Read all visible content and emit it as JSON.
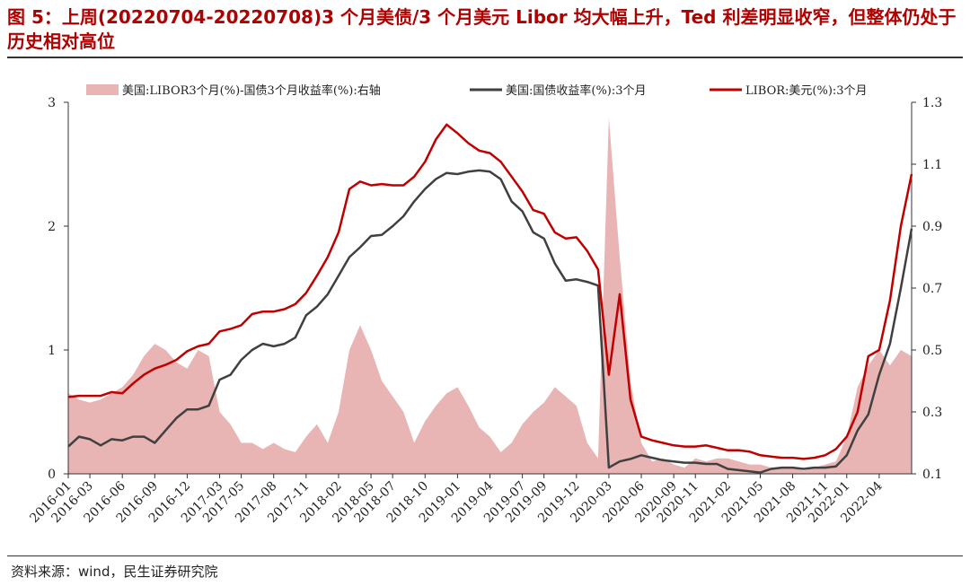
{
  "title": "图 5：上周(20220704-20220708)3 个月美债/3 个月美元 Libor 均大幅上升，Ted 利差明显收窄，但整体仍处于历史相对高位",
  "source": "资料来源：wind，民生证券研究院",
  "colors": {
    "title": "#b00000",
    "libor": "#c00000",
    "treasury": "#404040",
    "spread": "#e8b4b4"
  },
  "chart_data": {
    "type": "line",
    "legend_position": "top",
    "x_start": "2016-01",
    "x_end": "2022-07",
    "ylim_left": [
      0,
      3
    ],
    "yticks_left": [
      "0",
      "1",
      "2",
      "3"
    ],
    "ylim_right": [
      0.1,
      1.3
    ],
    "yticks_right": [
      "0.1",
      "0.3",
      "0.5",
      "0.7",
      "0.9",
      "1.1",
      "1.3"
    ],
    "xticks": [
      "2016-01",
      "2016-03",
      "2016-06",
      "2016-09",
      "2016-12",
      "2017-03",
      "2017-05",
      "2017-08",
      "2017-11",
      "2018-02",
      "2018-05",
      "2018-07",
      "2018-10",
      "2019-01",
      "2019-04",
      "2019-07",
      "2019-09",
      "2019-12",
      "2020-03",
      "2020-06",
      "2020-09",
      "2020-11",
      "2021-02",
      "2021-05",
      "2021-08",
      "2021-11",
      "2022-01",
      "2022-04"
    ],
    "series": [
      {
        "name": "美国:LIBOR3个月(%)-国债3个月收益率(%):右轴",
        "type": "area",
        "axis": "right",
        "points": [
          [
            "2016-01",
            0.36
          ],
          [
            "2016-02",
            0.34
          ],
          [
            "2016-03",
            0.33
          ],
          [
            "2016-04",
            0.34
          ],
          [
            "2016-05",
            0.36
          ],
          [
            "2016-06",
            0.38
          ],
          [
            "2016-07",
            0.42
          ],
          [
            "2016-08",
            0.48
          ],
          [
            "2016-09",
            0.52
          ],
          [
            "2016-10",
            0.5
          ],
          [
            "2016-11",
            0.46
          ],
          [
            "2016-12",
            0.44
          ],
          [
            "2017-01",
            0.5
          ],
          [
            "2017-02",
            0.48
          ],
          [
            "2017-03",
            0.3
          ],
          [
            "2017-04",
            0.26
          ],
          [
            "2017-05",
            0.2
          ],
          [
            "2017-06",
            0.2
          ],
          [
            "2017-07",
            0.18
          ],
          [
            "2017-08",
            0.2
          ],
          [
            "2017-09",
            0.18
          ],
          [
            "2017-10",
            0.17
          ],
          [
            "2017-11",
            0.22
          ],
          [
            "2017-12",
            0.26
          ],
          [
            "2018-01",
            0.2
          ],
          [
            "2018-02",
            0.3
          ],
          [
            "2018-03",
            0.5
          ],
          [
            "2018-04",
            0.58
          ],
          [
            "2018-05",
            0.5
          ],
          [
            "2018-06",
            0.4
          ],
          [
            "2018-07",
            0.35
          ],
          [
            "2018-08",
            0.3
          ],
          [
            "2018-09",
            0.2
          ],
          [
            "2018-10",
            0.27
          ],
          [
            "2018-11",
            0.32
          ],
          [
            "2018-12",
            0.36
          ],
          [
            "2019-01",
            0.38
          ],
          [
            "2019-02",
            0.32
          ],
          [
            "2019-03",
            0.25
          ],
          [
            "2019-04",
            0.22
          ],
          [
            "2019-05",
            0.17
          ],
          [
            "2019-06",
            0.2
          ],
          [
            "2019-07",
            0.26
          ],
          [
            "2019-08",
            0.3
          ],
          [
            "2019-09",
            0.33
          ],
          [
            "2019-10",
            0.38
          ],
          [
            "2019-11",
            0.35
          ],
          [
            "2019-12",
            0.32
          ],
          [
            "2020-01",
            0.2
          ],
          [
            "2020-02",
            0.15
          ],
          [
            "2020-03",
            1.25
          ],
          [
            "2020-04",
            0.8
          ],
          [
            "2020-05",
            0.4
          ],
          [
            "2020-06",
            0.2
          ],
          [
            "2020-07",
            0.14
          ],
          [
            "2020-08",
            0.15
          ],
          [
            "2020-09",
            0.13
          ],
          [
            "2020-10",
            0.12
          ],
          [
            "2020-11",
            0.15
          ],
          [
            "2020-12",
            0.14
          ],
          [
            "2021-01",
            0.15
          ],
          [
            "2021-02",
            0.15
          ],
          [
            "2021-03",
            0.14
          ],
          [
            "2021-04",
            0.13
          ],
          [
            "2021-05",
            0.13
          ],
          [
            "2021-06",
            0.12
          ],
          [
            "2021-07",
            0.12
          ],
          [
            "2021-08",
            0.12
          ],
          [
            "2021-09",
            0.11
          ],
          [
            "2021-10",
            0.12
          ],
          [
            "2021-11",
            0.13
          ],
          [
            "2021-12",
            0.14
          ],
          [
            "2022-01",
            0.22
          ],
          [
            "2022-02",
            0.38
          ],
          [
            "2022-03",
            0.45
          ],
          [
            "2022-04",
            0.5
          ],
          [
            "2022-05",
            0.45
          ],
          [
            "2022-06",
            0.5
          ],
          [
            "2022-07",
            0.48
          ]
        ]
      },
      {
        "name": "美国:国债收益率(%):3个月",
        "type": "line",
        "axis": "left",
        "points": [
          [
            "2016-01",
            0.22
          ],
          [
            "2016-02",
            0.3
          ],
          [
            "2016-03",
            0.28
          ],
          [
            "2016-04",
            0.23
          ],
          [
            "2016-05",
            0.28
          ],
          [
            "2016-06",
            0.27
          ],
          [
            "2016-07",
            0.3
          ],
          [
            "2016-08",
            0.3
          ],
          [
            "2016-09",
            0.25
          ],
          [
            "2016-10",
            0.35
          ],
          [
            "2016-11",
            0.45
          ],
          [
            "2016-12",
            0.52
          ],
          [
            "2017-01",
            0.52
          ],
          [
            "2017-02",
            0.55
          ],
          [
            "2017-03",
            0.76
          ],
          [
            "2017-04",
            0.8
          ],
          [
            "2017-05",
            0.92
          ],
          [
            "2017-06",
            1.0
          ],
          [
            "2017-07",
            1.05
          ],
          [
            "2017-08",
            1.03
          ],
          [
            "2017-09",
            1.05
          ],
          [
            "2017-10",
            1.1
          ],
          [
            "2017-11",
            1.28
          ],
          [
            "2017-12",
            1.35
          ],
          [
            "2018-01",
            1.45
          ],
          [
            "2018-02",
            1.6
          ],
          [
            "2018-03",
            1.75
          ],
          [
            "2018-04",
            1.83
          ],
          [
            "2018-05",
            1.92
          ],
          [
            "2018-06",
            1.93
          ],
          [
            "2018-07",
            2.0
          ],
          [
            "2018-08",
            2.08
          ],
          [
            "2018-09",
            2.2
          ],
          [
            "2018-10",
            2.3
          ],
          [
            "2018-11",
            2.38
          ],
          [
            "2018-12",
            2.43
          ],
          [
            "2019-01",
            2.42
          ],
          [
            "2019-02",
            2.44
          ],
          [
            "2019-03",
            2.45
          ],
          [
            "2019-04",
            2.44
          ],
          [
            "2019-05",
            2.38
          ],
          [
            "2019-06",
            2.2
          ],
          [
            "2019-07",
            2.12
          ],
          [
            "2019-08",
            1.95
          ],
          [
            "2019-09",
            1.9
          ],
          [
            "2019-10",
            1.7
          ],
          [
            "2019-11",
            1.56
          ],
          [
            "2019-12",
            1.57
          ],
          [
            "2020-01",
            1.55
          ],
          [
            "2020-02",
            1.52
          ],
          [
            "2020-03",
            0.05
          ],
          [
            "2020-04",
            0.1
          ],
          [
            "2020-05",
            0.12
          ],
          [
            "2020-06",
            0.15
          ],
          [
            "2020-07",
            0.13
          ],
          [
            "2020-08",
            0.11
          ],
          [
            "2020-09",
            0.1
          ],
          [
            "2020-10",
            0.09
          ],
          [
            "2020-11",
            0.09
          ],
          [
            "2020-12",
            0.08
          ],
          [
            "2021-01",
            0.08
          ],
          [
            "2021-02",
            0.04
          ],
          [
            "2021-03",
            0.03
          ],
          [
            "2021-04",
            0.02
          ],
          [
            "2021-05",
            0.01
          ],
          [
            "2021-06",
            0.04
          ],
          [
            "2021-07",
            0.05
          ],
          [
            "2021-08",
            0.05
          ],
          [
            "2021-09",
            0.04
          ],
          [
            "2021-10",
            0.05
          ],
          [
            "2021-11",
            0.05
          ],
          [
            "2021-12",
            0.06
          ],
          [
            "2022-01",
            0.15
          ],
          [
            "2022-02",
            0.35
          ],
          [
            "2022-03",
            0.48
          ],
          [
            "2022-04",
            0.8
          ],
          [
            "2022-05",
            1.05
          ],
          [
            "2022-06",
            1.5
          ],
          [
            "2022-07",
            1.98
          ]
        ]
      },
      {
        "name": "LIBOR:美元(%):3个月",
        "type": "line",
        "axis": "left",
        "points": [
          [
            "2016-01",
            0.62
          ],
          [
            "2016-02",
            0.63
          ],
          [
            "2016-03",
            0.63
          ],
          [
            "2016-04",
            0.63
          ],
          [
            "2016-05",
            0.66
          ],
          [
            "2016-06",
            0.65
          ],
          [
            "2016-07",
            0.73
          ],
          [
            "2016-08",
            0.8
          ],
          [
            "2016-09",
            0.85
          ],
          [
            "2016-10",
            0.88
          ],
          [
            "2016-11",
            0.92
          ],
          [
            "2016-12",
            0.99
          ],
          [
            "2017-01",
            1.03
          ],
          [
            "2017-02",
            1.05
          ],
          [
            "2017-03",
            1.15
          ],
          [
            "2017-04",
            1.17
          ],
          [
            "2017-05",
            1.2
          ],
          [
            "2017-06",
            1.29
          ],
          [
            "2017-07",
            1.31
          ],
          [
            "2017-08",
            1.31
          ],
          [
            "2017-09",
            1.33
          ],
          [
            "2017-10",
            1.37
          ],
          [
            "2017-11",
            1.46
          ],
          [
            "2017-12",
            1.6
          ],
          [
            "2018-01",
            1.75
          ],
          [
            "2018-02",
            1.95
          ],
          [
            "2018-03",
            2.3
          ],
          [
            "2018-04",
            2.36
          ],
          [
            "2018-05",
            2.33
          ],
          [
            "2018-06",
            2.34
          ],
          [
            "2018-07",
            2.33
          ],
          [
            "2018-08",
            2.33
          ],
          [
            "2018-09",
            2.4
          ],
          [
            "2018-10",
            2.52
          ],
          [
            "2018-11",
            2.7
          ],
          [
            "2018-12",
            2.82
          ],
          [
            "2019-01",
            2.75
          ],
          [
            "2019-02",
            2.67
          ],
          [
            "2019-03",
            2.61
          ],
          [
            "2019-04",
            2.59
          ],
          [
            "2019-05",
            2.52
          ],
          [
            "2019-06",
            2.4
          ],
          [
            "2019-07",
            2.28
          ],
          [
            "2019-08",
            2.13
          ],
          [
            "2019-09",
            2.1
          ],
          [
            "2019-10",
            1.95
          ],
          [
            "2019-11",
            1.9
          ],
          [
            "2019-12",
            1.91
          ],
          [
            "2020-01",
            1.8
          ],
          [
            "2020-02",
            1.65
          ],
          [
            "2020-03",
            0.8
          ],
          [
            "2020-04",
            1.45
          ],
          [
            "2020-05",
            0.6
          ],
          [
            "2020-06",
            0.3
          ],
          [
            "2020-07",
            0.27
          ],
          [
            "2020-08",
            0.25
          ],
          [
            "2020-09",
            0.23
          ],
          [
            "2020-10",
            0.22
          ],
          [
            "2020-11",
            0.22
          ],
          [
            "2020-12",
            0.23
          ],
          [
            "2021-01",
            0.21
          ],
          [
            "2021-02",
            0.19
          ],
          [
            "2021-03",
            0.19
          ],
          [
            "2021-04",
            0.18
          ],
          [
            "2021-05",
            0.15
          ],
          [
            "2021-06",
            0.14
          ],
          [
            "2021-07",
            0.13
          ],
          [
            "2021-08",
            0.13
          ],
          [
            "2021-09",
            0.12
          ],
          [
            "2021-10",
            0.13
          ],
          [
            "2021-11",
            0.15
          ],
          [
            "2021-12",
            0.2
          ],
          [
            "2022-01",
            0.3
          ],
          [
            "2022-02",
            0.5
          ],
          [
            "2022-03",
            0.95
          ],
          [
            "2022-04",
            1.0
          ],
          [
            "2022-05",
            1.4
          ],
          [
            "2022-06",
            2.0
          ],
          [
            "2022-07",
            2.42
          ]
        ]
      }
    ]
  }
}
